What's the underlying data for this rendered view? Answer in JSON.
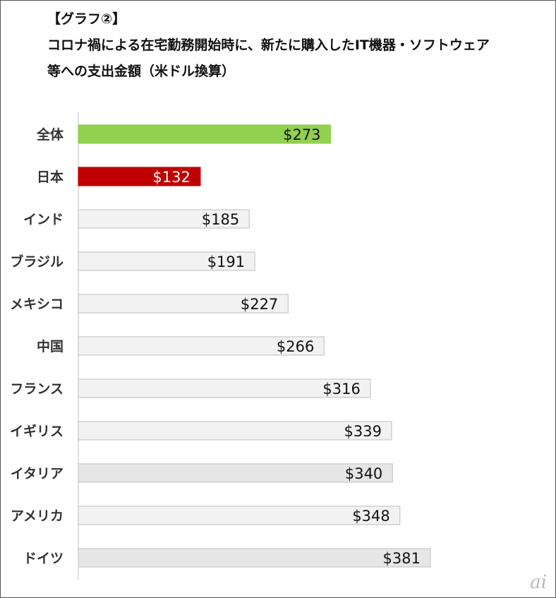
{
  "header": {
    "label": "【グラフ②】",
    "title_line1": "コロナ禍による在宅勤務開始時に、新たに購入したIT機器・ソフトウェア",
    "title_line2": "等への支出金額（米ドル換算）"
  },
  "chart_data": {
    "type": "bar",
    "orientation": "horizontal",
    "title": "コロナ禍による在宅勤務開始時に、新たに購入したIT機器・ソフトウェア等への支出金額（米ドル換算）",
    "categories": [
      "全体",
      "日本",
      "インド",
      "ブラジル",
      "メキシコ",
      "中国",
      "フランス",
      "イギリス",
      "イタリア",
      "アメリカ",
      "ドイツ"
    ],
    "values": [
      273,
      132,
      185,
      191,
      227,
      266,
      316,
      339,
      340,
      348,
      381
    ],
    "labels": [
      "$273",
      "$132",
      "$185",
      "$191",
      "$227",
      "$266",
      "$316",
      "$339",
      "$340",
      "$348",
      "$381"
    ],
    "unit": "USD",
    "xlim": [
      0,
      381
    ],
    "grid": false,
    "legend": "none",
    "colors": {
      "highlight_total": "#92d050",
      "highlight_japan": "#c00000",
      "default": "#f2f2f2",
      "alt": "#e6e6e6",
      "bar_border": "#c8c8c8"
    },
    "bar_colors": [
      "#92d050",
      "#c00000",
      "#f2f2f2",
      "#f2f2f2",
      "#f2f2f2",
      "#f2f2f2",
      "#f2f2f2",
      "#f2f2f2",
      "#e6e6e6",
      "#f2f2f2",
      "#e6e6e6"
    ],
    "label_colors": [
      "#111111",
      "#ffffff",
      "#111111",
      "#111111",
      "#111111",
      "#111111",
      "#111111",
      "#111111",
      "#111111",
      "#111111",
      "#111111"
    ]
  },
  "logo_text": "ai"
}
